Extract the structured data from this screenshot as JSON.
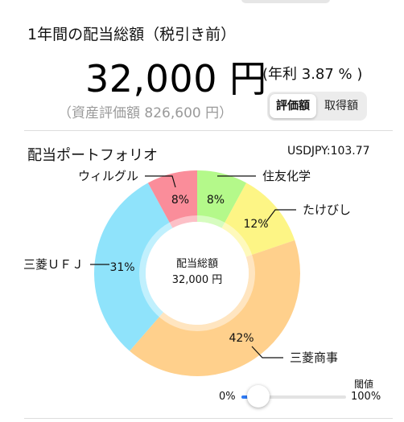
{
  "summary": {
    "title": "1年間の配当総額（税引き前）",
    "amount": "32,000 円",
    "yield": "(年利 3.87 % )",
    "asset_value": "（資産評価額 826,600 円）"
  },
  "toggle": {
    "options": [
      "評価額",
      "取得額"
    ],
    "selected": "評価額"
  },
  "portfolio": {
    "title": "配当ポートフォリオ",
    "fx_rate": "USDJPY:103.77",
    "center_label": "配当総額",
    "center_value": "32,000 円"
  },
  "chart_data": {
    "type": "pie",
    "categories": [
      "住友化学",
      "たけびし",
      "三菱商事",
      "三菱ＵＦＪ",
      "ウィルグル"
    ],
    "values": [
      8,
      12,
      42,
      31,
      8
    ],
    "labels": [
      "8%",
      "12%",
      "42%",
      "31%",
      "8%"
    ],
    "colors": [
      "#b4f98a",
      "#fdf585",
      "#ffd08c",
      "#8fe3fb",
      "#fa8d9a"
    ]
  },
  "threshold": {
    "title": "閾値",
    "min_label": "0%",
    "max_label": "100%",
    "value": 0.05
  }
}
